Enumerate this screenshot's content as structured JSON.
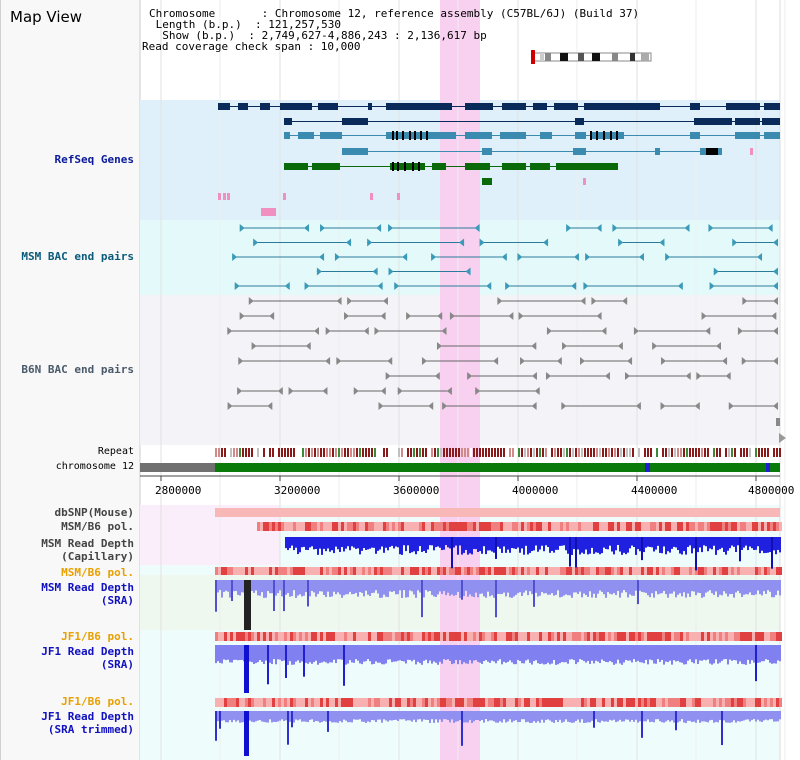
{
  "page": {
    "title": "Map View"
  },
  "info": {
    "chromosome_line": "Chromosome       : Chromosome 12, reference assembly (C57BL/6J) (Build 37)",
    "length_line": " Length (b.p.)  : 121,257,530",
    "show_line": "  Show (b.p.)  : 2,749,627-4,886,243 : 2,136,617 bp",
    "coverage_line": "Read coverage check span : 10,000"
  },
  "tracks": {
    "refseq": "RefSeq Genes",
    "msm_bac": "MSM BAC end pairs",
    "b6n_bac": "B6N BAC end pairs",
    "repeat": "Repeat",
    "chromosome": "chromosome 12",
    "dbsnp": "dbSNP(Mouse)",
    "msm_b6_pol": "MSM/B6 pol.",
    "msm_depth_cap_1": "MSM Read Depth",
    "msm_depth_cap_2": "(Capillary)",
    "msm_b6_pol2": "MSM/B6 pol.",
    "msm_depth_sra_1": "MSM Read Depth",
    "msm_depth_sra_2": "(SRA)",
    "jf1_b6_pol": "JF1/B6 pol.",
    "jf1_depth_sra_1": "JF1 Read Depth",
    "jf1_depth_sra_2": "(SRA)",
    "jf1_b6_pol2": "JF1/B6 pol.",
    "jf1_depth_trim_1": "JF1 Read Depth",
    "jf1_depth_trim_2": "(SRA trimmed)"
  },
  "axis": {
    "ticks": [
      "2800000",
      "3200000",
      "3600000",
      "4000000",
      "4400000",
      "4800000"
    ]
  },
  "colors": {
    "refseq_bg": "#dff0fa",
    "msm_bac_bg": "#e4fafa",
    "b6n_bac_bg": "#f4f4f8",
    "highlight": "#f8d0f0",
    "chrom_green": "#0a7a0a",
    "chrom_gray": "#707070",
    "depth_blue": "#2020e0",
    "depth_lightblue": "#9090f0"
  }
}
